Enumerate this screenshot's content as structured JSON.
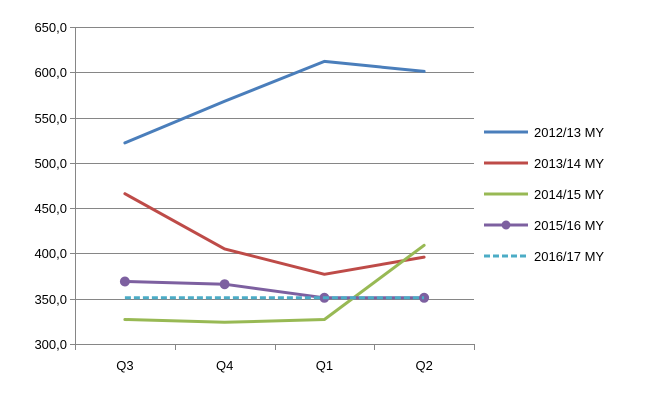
{
  "chart_data": {
    "type": "line",
    "categories": [
      "Q3",
      "Q4",
      "Q1",
      "Q2"
    ],
    "ylim": [
      300,
      650
    ],
    "yticks": [
      300,
      350,
      400,
      450,
      500,
      550,
      600,
      650
    ],
    "ytick_labels": [
      "300,0",
      "350,0",
      "400,0",
      "450,0",
      "500,0",
      "550,0",
      "600,0",
      "650,0"
    ],
    "grid": true,
    "legend_position": "right",
    "series": [
      {
        "name": "2012/13 MY",
        "values": [
          522,
          568,
          612,
          601
        ],
        "color": "#4a7ebb",
        "style": "solid",
        "marker": "none"
      },
      {
        "name": "2013/14 MY",
        "values": [
          466,
          405,
          377,
          396
        ],
        "color": "#be4b48",
        "style": "solid",
        "marker": "none"
      },
      {
        "name": "2014/15 MY",
        "values": [
          327,
          324,
          327,
          409
        ],
        "color": "#98b954",
        "style": "solid",
        "marker": "none"
      },
      {
        "name": "2015/16 MY",
        "values": [
          369,
          366,
          351,
          351
        ],
        "color": "#7d60a0",
        "style": "solid",
        "marker": "circle"
      },
      {
        "name": "2016/17 MY",
        "values": [
          351,
          351,
          351,
          351
        ],
        "color": "#4bacc6",
        "style": "dashed",
        "marker": "none"
      }
    ]
  }
}
